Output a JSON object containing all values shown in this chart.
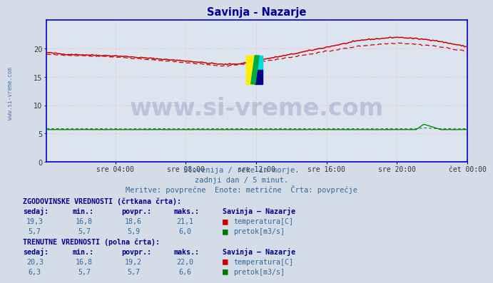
{
  "title": "Savinja - Nazarje",
  "title_color": "#000099",
  "bg_color": "#d4dce8",
  "plot_bg_color": "#dce4f0",
  "grid_h_color": "#ffaaaa",
  "grid_v_color": "#ffaaaa",
  "spine_color": "#0000cc",
  "subtitle1": "Slovenija / reke in morje.",
  "subtitle2": "zadnji dan / 5 minut.",
  "subtitle3": "Meritve: povprečne  Enote: metrične  Črta: povprečje",
  "xlabel_ticks": [
    "sre 04:00",
    "sre 08:00",
    "sre 12:00",
    "sre 16:00",
    "sre 20:00",
    "čet 00:00"
  ],
  "yticks": [
    0,
    5,
    10,
    15,
    20
  ],
  "ymin": 0,
  "ymax": 25,
  "n_points": 288,
  "temp_color": "#cc0000",
  "flow_color": "#007700",
  "watermark_text": "www.si-vreme.com",
  "watermark_color": "#1a3a7a",
  "watermark_alpha": 0.18,
  "left_label": "www.si-vreme.com",
  "legend_section1": "ZGODOVINSKE VREDNOSTI (črtkana črta):",
  "legend_section2": "TRENUTNE VREDNOSTI (polna črta):",
  "col_headers": [
    "sedaj:",
    "min.:",
    "povpr.:",
    "maks.:",
    "Savinja – Nazarje"
  ],
  "hist_temp": {
    "sedaj": "19,3",
    "min": "16,8",
    "povpr": "18,6",
    "maks": "21,1",
    "label": "temperatura[C]",
    "color": "#cc0000"
  },
  "hist_flow": {
    "sedaj": "5,7",
    "min": "5,7",
    "povpr": "5,9",
    "maks": "6,0",
    "label": "pretok[m3/s]",
    "color": "#007700"
  },
  "curr_temp": {
    "sedaj": "20,3",
    "min": "16,8",
    "povpr": "19,2",
    "maks": "22,0",
    "label": "temperatura[C]",
    "color": "#cc0000"
  },
  "curr_flow": {
    "sedaj": "6,3",
    "min": "5,7",
    "povpr": "5,7",
    "maks": "6,6",
    "label": "pretok[m3/s]",
    "color": "#007700"
  }
}
